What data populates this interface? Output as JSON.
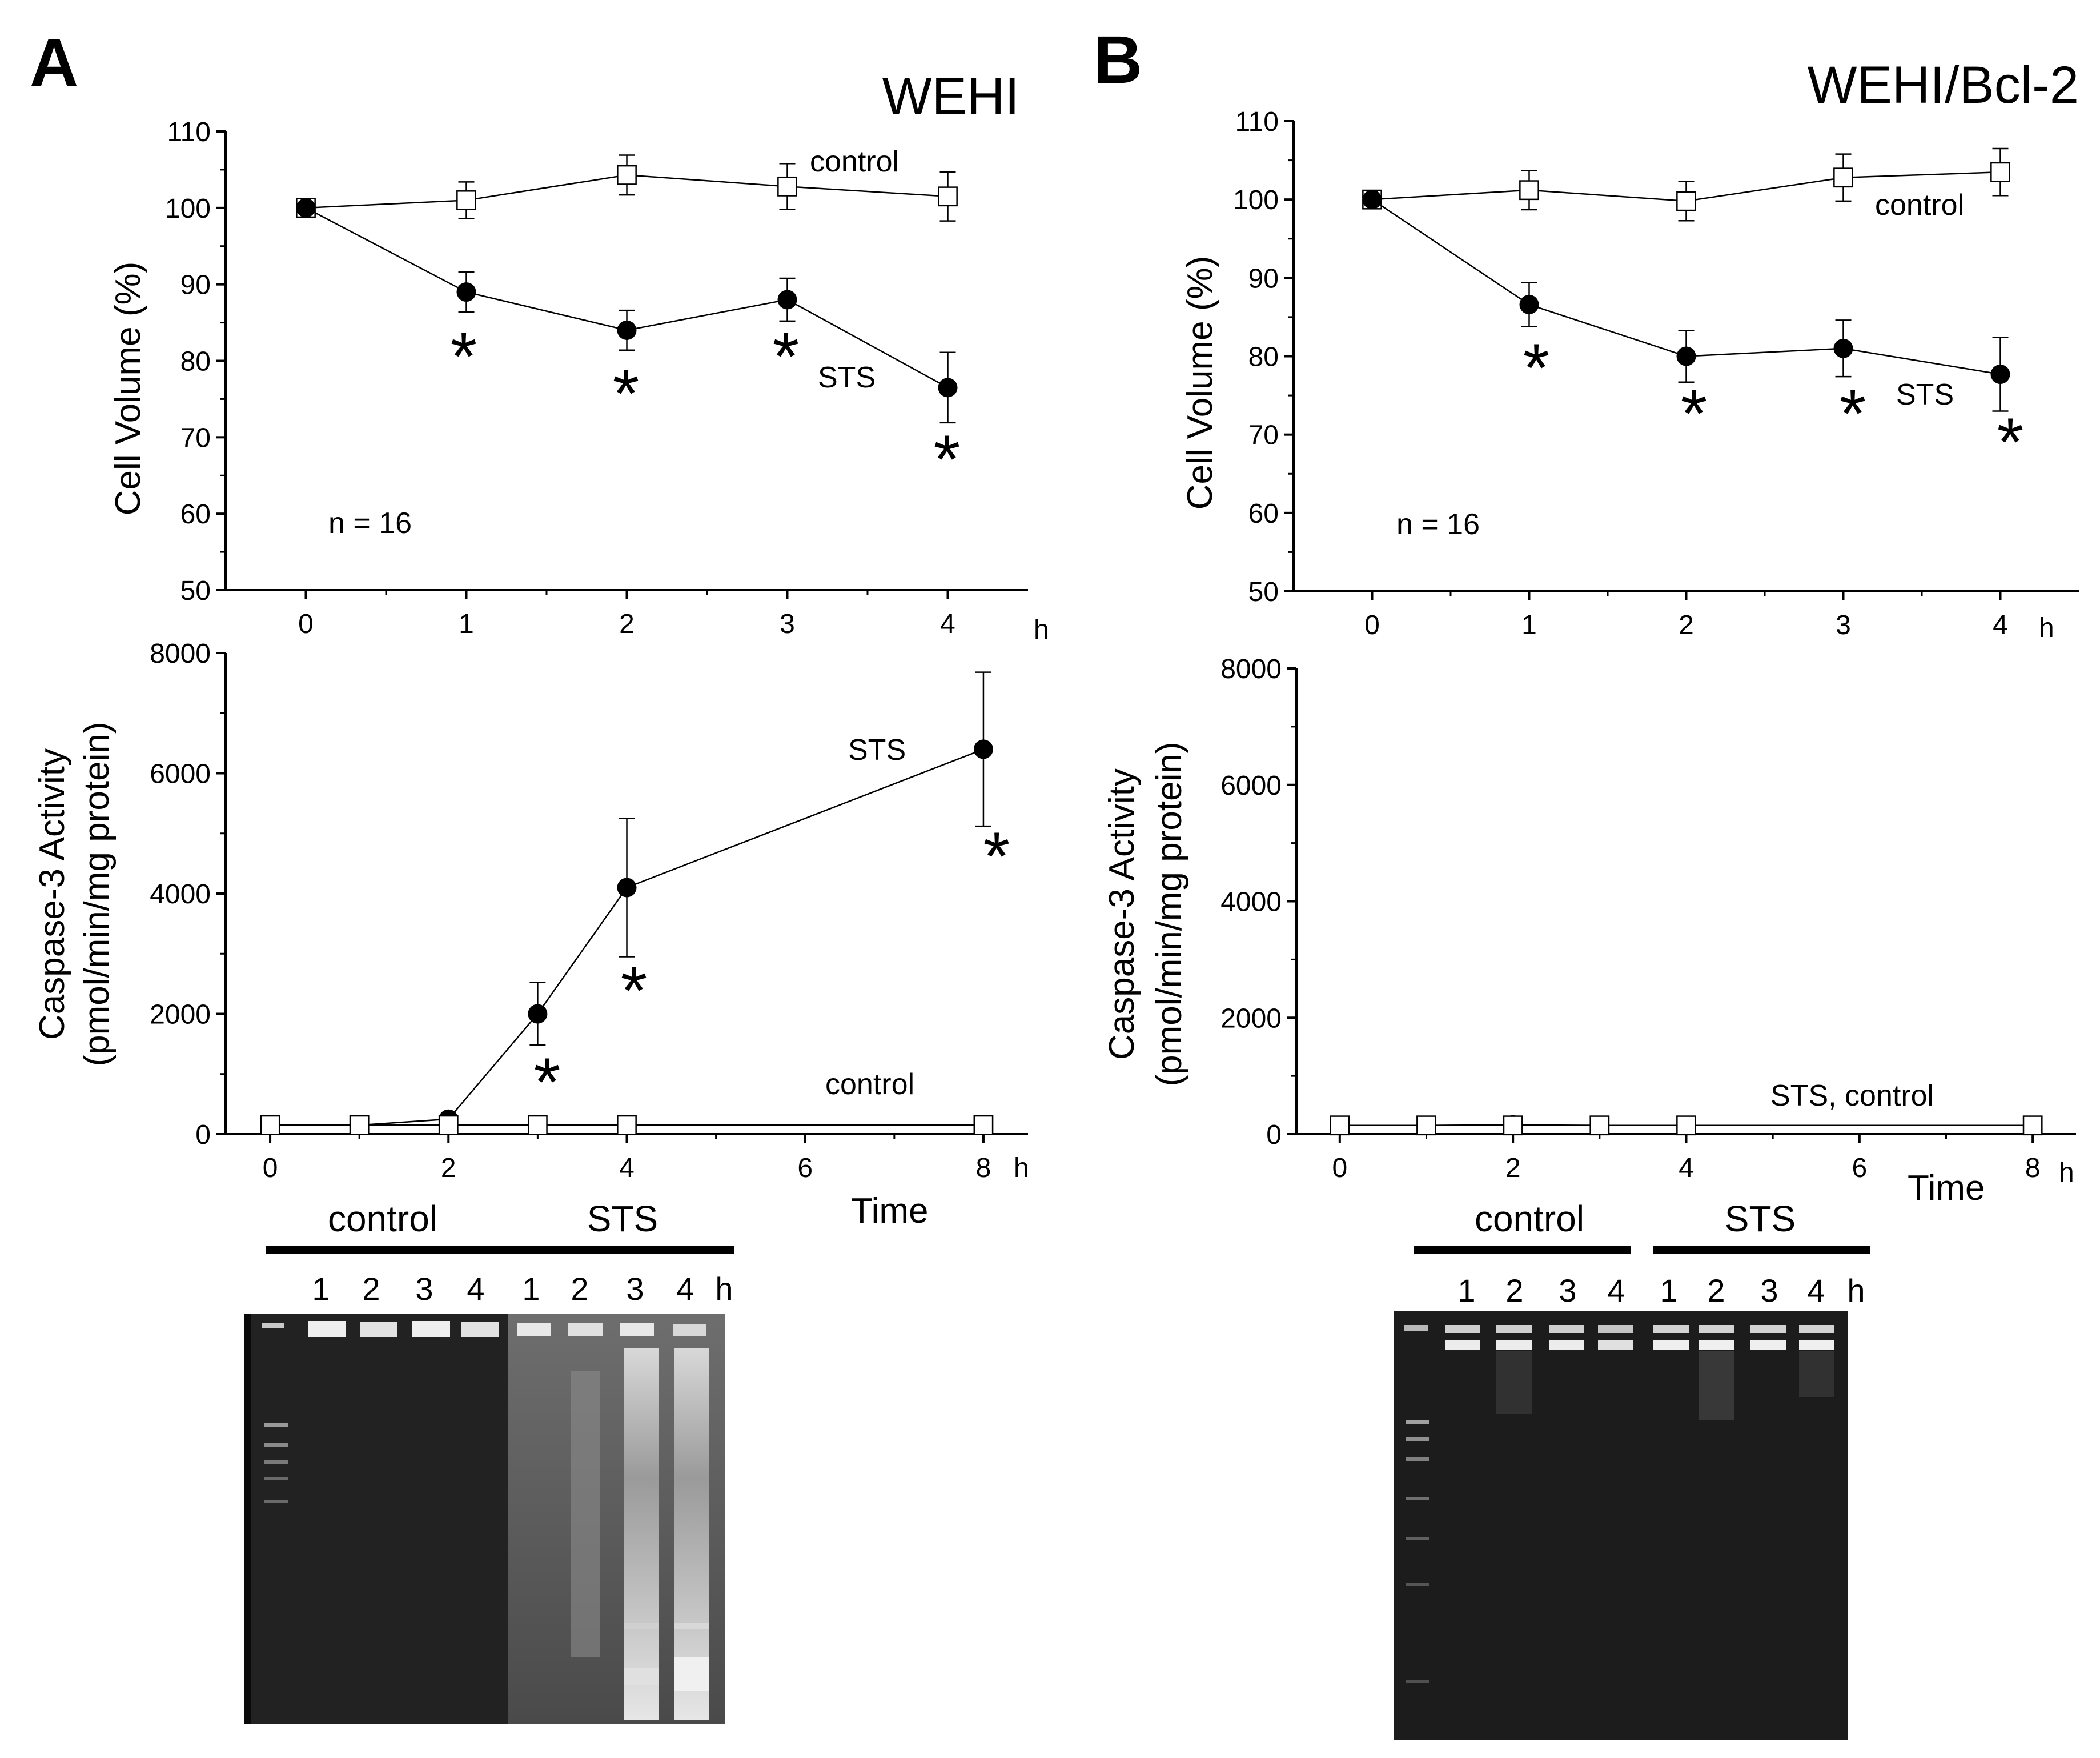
{
  "panels": [
    {
      "letter": "A",
      "title": "WEHI",
      "volume": {
        "ylabel": "Cell Volume (%)",
        "yticks": [
          "50",
          "60",
          "70",
          "80",
          "90",
          "100",
          "110"
        ],
        "xticks": [
          "0",
          "1",
          "2",
          "3",
          "4"
        ],
        "x_unit": "h",
        "n_label": "n = 16",
        "control_label": "control",
        "sts_label": "STS"
      },
      "caspase": {
        "ylabel_line1": "Caspase-3 Activity",
        "ylabel_line2": "(pmol/min/mg protein)",
        "yticks": [
          "0",
          "2000",
          "4000",
          "6000",
          "8000"
        ],
        "xticks": [
          "0",
          "2",
          "4",
          "6",
          "8"
        ],
        "x_unit": "h",
        "xlabel": "Time",
        "sts_label": "STS",
        "control_label": "control"
      },
      "gel": {
        "control_label": "control",
        "sts_label": "STS",
        "lanes": [
          "1",
          "2",
          "3",
          "4",
          "1",
          "2",
          "3",
          "4"
        ],
        "unit": "h"
      }
    },
    {
      "letter": "B",
      "title": "WEHI/Bcl-2",
      "volume": {
        "ylabel": "Cell Volume (%)",
        "yticks": [
          "50",
          "60",
          "70",
          "80",
          "90",
          "100",
          "110"
        ],
        "xticks": [
          "0",
          "1",
          "2",
          "3",
          "4"
        ],
        "x_unit": "h",
        "n_label": "n = 16",
        "control_label": "control",
        "sts_label": "STS"
      },
      "caspase": {
        "ylabel_line1": "Caspase-3 Activity",
        "ylabel_line2": "(pmol/min/mg protein)",
        "yticks": [
          "0",
          "2000",
          "4000",
          "6000",
          "8000"
        ],
        "xticks": [
          "0",
          "2",
          "4",
          "6",
          "8"
        ],
        "x_unit": "h",
        "xlabel": "Time",
        "combined_label": "STS, control"
      },
      "gel": {
        "control_label": "control",
        "sts_label": "STS",
        "lanes": [
          "1",
          "2",
          "3",
          "4",
          "1",
          "2",
          "3",
          "4"
        ],
        "unit": "h"
      }
    }
  ],
  "chart_data": [
    {
      "type": "line",
      "title": "WEHI",
      "xlabel": "h",
      "ylabel": "Cell Volume (%)",
      "xlim": [
        -0.5,
        4.5
      ],
      "ylim": [
        50,
        110
      ],
      "series": [
        {
          "name": "control",
          "marker": "open-square",
          "x": [
            0,
            1,
            2,
            3,
            4
          ],
          "y": [
            100,
            101,
            104.3,
            102.8,
            101.5
          ],
          "err": [
            0,
            2.4,
            2.6,
            3.0,
            3.2
          ]
        },
        {
          "name": "STS",
          "marker": "filled-circle",
          "x": [
            0,
            1,
            2,
            3,
            4
          ],
          "y": [
            100,
            89,
            84,
            88,
            76.5
          ],
          "err": [
            0,
            2.6,
            2.6,
            2.8,
            4.6
          ]
        }
      ],
      "significant": [
        1,
        2,
        3,
        4
      ],
      "annotations": [
        "n = 16",
        "*"
      ]
    },
    {
      "type": "line",
      "title": "WEHI",
      "xlabel": "Time (h)",
      "ylabel": "Caspase-3 Activity (pmol/min/mg protein)",
      "xlim": [
        -0.5,
        8.5
      ],
      "ylim": [
        0,
        8000
      ],
      "series": [
        {
          "name": "STS",
          "marker": "filled-circle",
          "x": [
            0,
            1,
            2,
            3,
            4,
            8
          ],
          "y": [
            150,
            150,
            250,
            2000,
            4100,
            6400
          ],
          "err": [
            0,
            0,
            60,
            520,
            1150,
            1280
          ]
        },
        {
          "name": "control",
          "marker": "open-square",
          "x": [
            0,
            1,
            2,
            3,
            4,
            8
          ],
          "y": [
            150,
            150,
            150,
            150,
            150,
            150
          ],
          "err": [
            0,
            0,
            0,
            0,
            0,
            0
          ]
        }
      ],
      "significant": [
        3,
        4,
        8
      ],
      "annotations": [
        "*"
      ]
    },
    {
      "type": "line",
      "title": "WEHI/Bcl-2",
      "xlabel": "h",
      "ylabel": "Cell Volume (%)",
      "xlim": [
        -0.5,
        4.5
      ],
      "ylim": [
        50,
        110
      ],
      "series": [
        {
          "name": "control",
          "marker": "open-square",
          "x": [
            0,
            1,
            2,
            3,
            4
          ],
          "y": [
            100,
            101.2,
            99.8,
            102.8,
            103.5
          ],
          "err": [
            0,
            2.5,
            2.5,
            3.0,
            3.0
          ]
        },
        {
          "name": "STS",
          "marker": "filled-circle",
          "x": [
            0,
            1,
            2,
            3,
            4
          ],
          "y": [
            100,
            86.6,
            80,
            81,
            77.7
          ],
          "err": [
            0,
            2.8,
            3.3,
            3.6,
            4.7
          ]
        }
      ],
      "significant": [
        1,
        2,
        3,
        4
      ],
      "annotations": [
        "n = 16",
        "*"
      ]
    },
    {
      "type": "line",
      "title": "WEHI/Bcl-2",
      "xlabel": "Time (h)",
      "ylabel": "Caspase-3 Activity (pmol/min/mg protein)",
      "xlim": [
        -0.5,
        8.5
      ],
      "ylim": [
        0,
        8000
      ],
      "series": [
        {
          "name": "STS",
          "marker": "filled-circle",
          "x": [
            0,
            1,
            2,
            3,
            4,
            8
          ],
          "y": [
            150,
            150,
            160,
            150,
            150,
            150
          ],
          "err": [
            0,
            0,
            0,
            0,
            0,
            0
          ]
        },
        {
          "name": "control",
          "marker": "open-square",
          "x": [
            0,
            1,
            2,
            3,
            4,
            8
          ],
          "y": [
            150,
            150,
            150,
            150,
            150,
            150
          ],
          "err": [
            0,
            0,
            0,
            0,
            0,
            0
          ]
        }
      ],
      "significant": [],
      "annotations": []
    }
  ]
}
